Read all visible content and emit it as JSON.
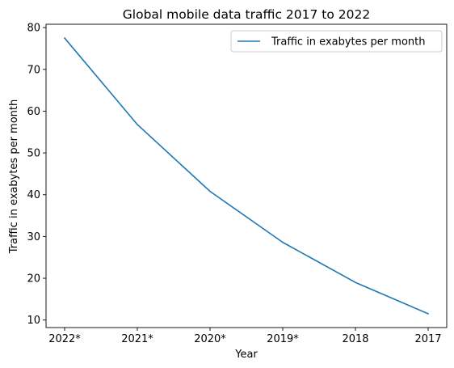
{
  "chart_data": {
    "type": "line",
    "title": "Global mobile data traffic 2017 to 2022",
    "xlabel": "Year",
    "ylabel": "Traffic in exabytes per month",
    "categories": [
      "2022*",
      "2021*",
      "2020*",
      "2019*",
      "2018",
      "2017"
    ],
    "series": [
      {
        "name": "Traffic in exabytes per month",
        "color": "#1f77b4",
        "values": [
          77.5,
          56.8,
          40.8,
          28.6,
          19.0,
          11.5
        ]
      }
    ],
    "ylim": [
      8.2,
      80.8
    ],
    "yticks": [
      10,
      20,
      30,
      40,
      50,
      60,
      70,
      80
    ],
    "grid": false,
    "legend_position": "upper right"
  }
}
